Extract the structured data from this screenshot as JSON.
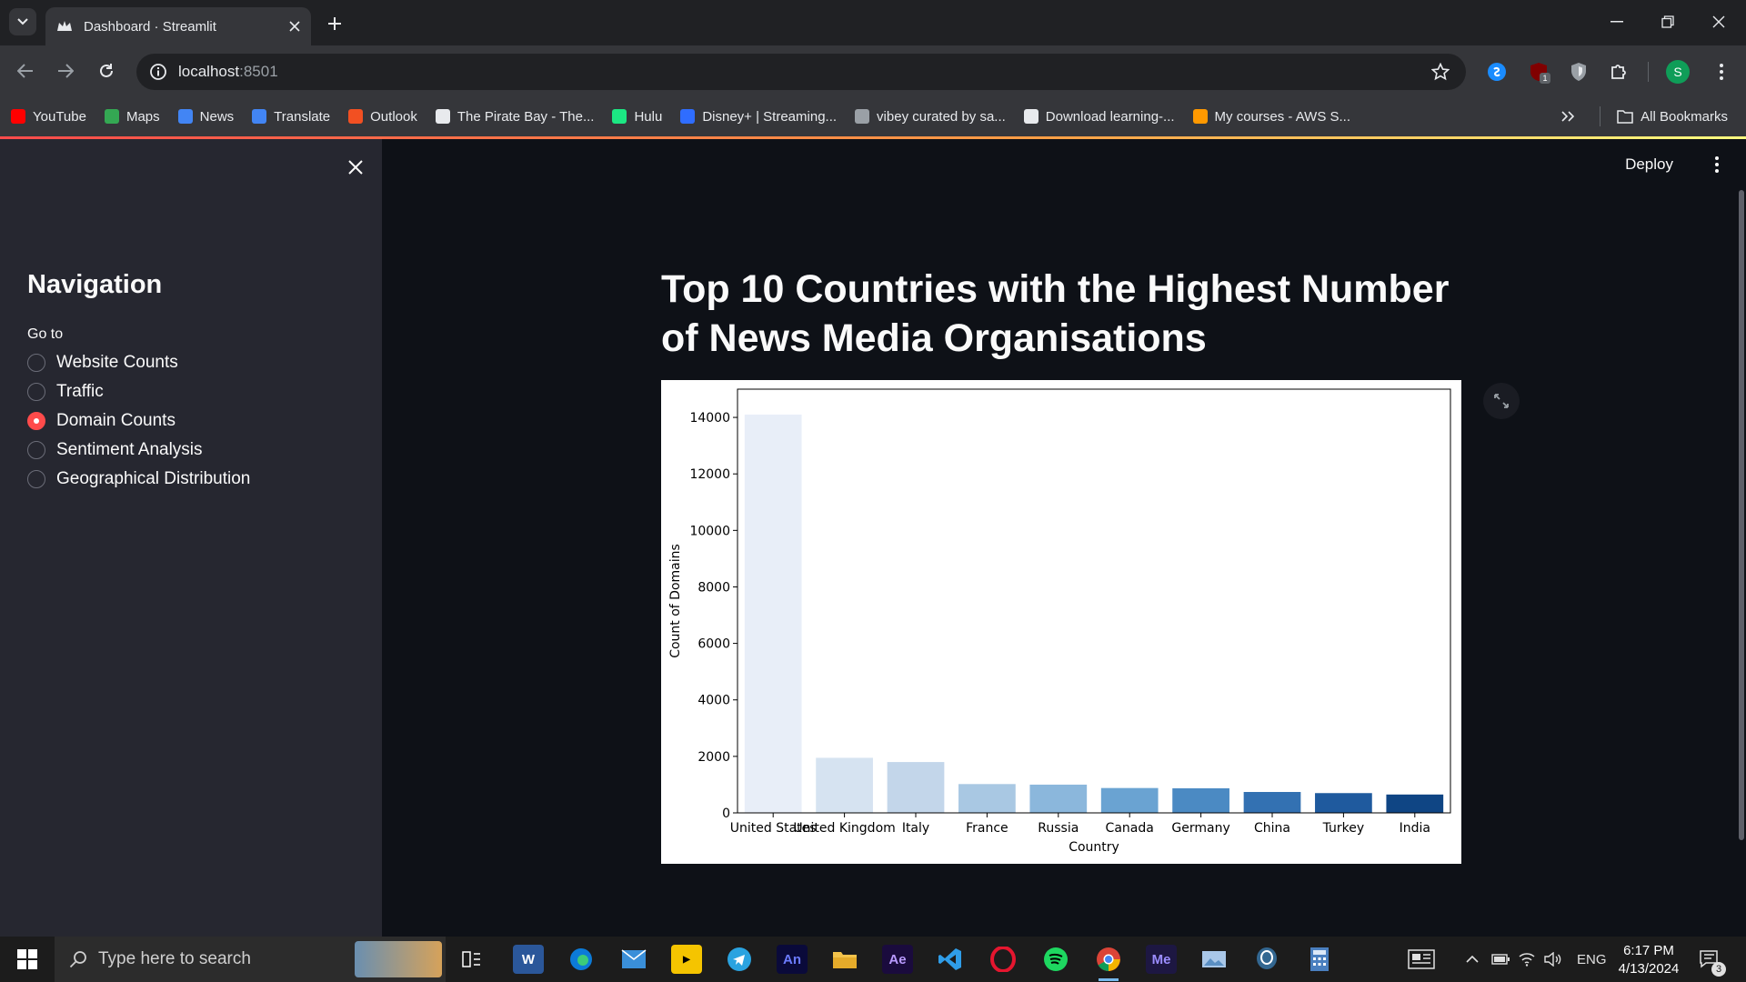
{
  "browser": {
    "tab_title": "Dashboard · Streamlit",
    "url_host": "localhost",
    "url_port": ":8501",
    "bookmarks": [
      {
        "label": "YouTube",
        "icon": "youtube-icon",
        "color": "#ff0000"
      },
      {
        "label": "Maps",
        "icon": "maps-icon",
        "color": "#34a853"
      },
      {
        "label": "News",
        "icon": "news-icon",
        "color": "#4285f4"
      },
      {
        "label": "Translate",
        "icon": "translate-icon",
        "color": "#4285f4"
      },
      {
        "label": "Outlook",
        "icon": "outlook-icon",
        "color": "#f25022"
      },
      {
        "label": "The Pirate Bay - The...",
        "icon": "piratebay-icon",
        "color": "#e8eaed"
      },
      {
        "label": "Hulu",
        "icon": "hulu-icon",
        "color": "#1ce783"
      },
      {
        "label": "Disney+ | Streaming...",
        "icon": "disney-icon",
        "color": "#2f6dff"
      },
      {
        "label": "vibey curated by sa...",
        "icon": "soon-icon",
        "color": "#9aa0a6"
      },
      {
        "label": "Download learning-...",
        "icon": "globe-icon",
        "color": "#e8eaed"
      },
      {
        "label": "My courses - AWS S...",
        "icon": "aws-icon",
        "color": "#ff9900"
      }
    ],
    "all_bookmarks": "All Bookmarks",
    "profile_initial": "S",
    "ext_badge": "1"
  },
  "sidebar": {
    "title": "Navigation",
    "goto_label": "Go to",
    "options": [
      "Website Counts",
      "Traffic",
      "Domain Counts",
      "Sentiment Analysis",
      "Geographical Distribution"
    ],
    "selected_index": 2
  },
  "main": {
    "deploy_label": "Deploy",
    "title": "Top 10 Countries with the Highest Number of News Media Organisations"
  },
  "chart_data": {
    "type": "bar",
    "title": "",
    "xlabel": "Country",
    "ylabel": "Count of Domains",
    "categories": [
      "United States",
      "United Kingdom",
      "Italy",
      "France",
      "Russia",
      "Canada",
      "Germany",
      "China",
      "Turkey",
      "India"
    ],
    "values": [
      14100,
      1950,
      1800,
      1020,
      1000,
      880,
      870,
      740,
      700,
      650
    ],
    "colors": [
      "#e8eef8",
      "#d6e3f1",
      "#c3d6ea",
      "#a9c8e3",
      "#8bb7dc",
      "#6aa3d2",
      "#4b8ac3",
      "#3371b2",
      "#1f5a9e",
      "#0f4584"
    ],
    "ylim": [
      0,
      15000
    ],
    "yticks": [
      0,
      2000,
      4000,
      6000,
      8000,
      10000,
      12000,
      14000
    ],
    "grid": false
  },
  "taskbar": {
    "search_placeholder": "Type here to search",
    "language": "ENG",
    "time": "6:17 PM",
    "date": "4/13/2024",
    "notifications": "3"
  }
}
